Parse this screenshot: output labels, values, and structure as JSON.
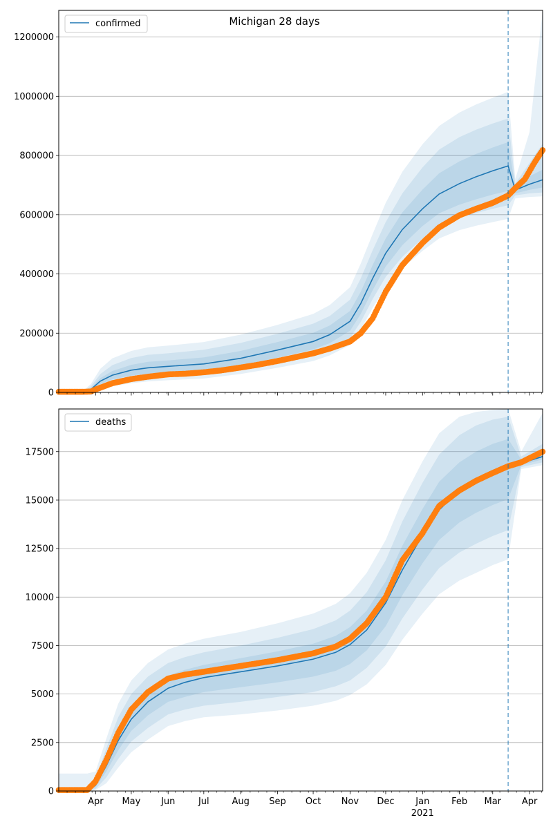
{
  "title": "Michigan 28 days",
  "colors": {
    "model": "#1f77b4",
    "observed": "#ff7f0e",
    "band": "#1f77b4",
    "grid": "#b0b0b0",
    "vline": "#1f77b4"
  },
  "x_axis": {
    "start": "2020-03-01",
    "end": "2021-04-12",
    "forecast_date": "2021-03-14",
    "month_labels": [
      {
        "date": "2020-04-01",
        "label": "Apr"
      },
      {
        "date": "2020-05-01",
        "label": "May"
      },
      {
        "date": "2020-06-01",
        "label": "Jun"
      },
      {
        "date": "2020-07-01",
        "label": "Jul"
      },
      {
        "date": "2020-08-01",
        "label": "Aug"
      },
      {
        "date": "2020-09-01",
        "label": "Sep"
      },
      {
        "date": "2020-10-01",
        "label": "Oct"
      },
      {
        "date": "2020-11-01",
        "label": "Nov"
      },
      {
        "date": "2020-12-01",
        "label": "Dec"
      },
      {
        "date": "2021-01-01",
        "label": "Jan"
      },
      {
        "date": "2021-02-01",
        "label": "Feb"
      },
      {
        "date": "2021-03-01",
        "label": "Mar"
      },
      {
        "date": "2021-04-01",
        "label": "Apr"
      }
    ],
    "year_label": {
      "date": "2021-01-01",
      "label": "2021"
    }
  },
  "chart_data": [
    {
      "type": "line",
      "legend": "confirmed",
      "legend_position": "top-left",
      "grid": "horizontal",
      "ylim": [
        0,
        1290000
      ],
      "yticks": [
        0,
        200000,
        400000,
        600000,
        800000,
        1000000,
        1200000
      ],
      "ytick_labels": [
        "0",
        "200000",
        "400000",
        "600000",
        "800000",
        "1000000",
        "1200000"
      ],
      "model": {
        "x": [
          "2020-03-01",
          "2020-03-20",
          "2020-03-28",
          "2020-04-05",
          "2020-04-15",
          "2020-05-01",
          "2020-05-15",
          "2020-06-01",
          "2020-07-01",
          "2020-08-01",
          "2020-09-01",
          "2020-10-01",
          "2020-10-15",
          "2020-11-01",
          "2020-11-10",
          "2020-11-20",
          "2020-12-01",
          "2020-12-15",
          "2021-01-01",
          "2021-01-15",
          "2021-02-01",
          "2021-02-15",
          "2021-03-01",
          "2021-03-14",
          "2021-03-20",
          "2021-04-01",
          "2021-04-12"
        ],
        "y": [
          0,
          0,
          10000,
          38000,
          58000,
          75000,
          83000,
          88000,
          96000,
          115000,
          143000,
          172000,
          195000,
          240000,
          300000,
          385000,
          470000,
          550000,
          620000,
          670000,
          705000,
          728000,
          748000,
          765000,
          683000,
          703000,
          718000
        ],
        "bands": {
          "lower_1": [
            0,
            0,
            6000,
            28000,
            44000,
            57000,
            63000,
            68000,
            75000,
            92000,
            117000,
            145000,
            166000,
            208000,
            265000,
            345000,
            425000,
            497000,
            562000,
            605000,
            634000,
            652000,
            668000,
            680000,
            672000,
            684000,
            692000
          ],
          "upper_1": [
            0,
            0,
            14000,
            48000,
            72000,
            93000,
            103000,
            108000,
            118000,
            140000,
            170000,
            201000,
            226000,
            275000,
            340000,
            430000,
            520000,
            608000,
            685000,
            740000,
            780000,
            805000,
            827000,
            845000,
            692000,
            730000,
            752000
          ],
          "lower_2": [
            0,
            0,
            3000,
            20000,
            32000,
            43000,
            49000,
            54000,
            60000,
            76000,
            99000,
            125000,
            145000,
            184000,
            238000,
            315000,
            390000,
            458000,
            520000,
            562000,
            590000,
            606000,
            620000,
            632000,
            665000,
            672000,
            675000
          ],
          "upper_2": [
            0,
            0,
            20000,
            62000,
            92000,
            116000,
            127000,
            132000,
            144000,
            167000,
            198000,
            232000,
            258000,
            313000,
            385000,
            480000,
            575000,
            672000,
            760000,
            820000,
            862000,
            887000,
            908000,
            925000,
            705000,
            775000,
            840000
          ],
          "lower_3": [
            0,
            0,
            1000,
            12000,
            21000,
            31000,
            37000,
            41000,
            47000,
            62000,
            83000,
            106000,
            125000,
            160000,
            212000,
            285000,
            355000,
            420000,
            478000,
            520000,
            548000,
            563000,
            575000,
            586000,
            655000,
            660000,
            662000
          ],
          "upper_3": [
            0,
            0,
            28000,
            80000,
            115000,
            140000,
            152000,
            158000,
            170000,
            195000,
            228000,
            265000,
            295000,
            355000,
            435000,
            535000,
            640000,
            745000,
            838000,
            900000,
            945000,
            972000,
            995000,
            1015000,
            720000,
            880000,
            1290000
          ]
        }
      },
      "observed": {
        "x": [
          "2020-03-01",
          "2020-03-20",
          "2020-03-28",
          "2020-04-01",
          "2020-04-15",
          "2020-05-01",
          "2020-05-15",
          "2020-06-01",
          "2020-06-15",
          "2020-07-01",
          "2020-07-15",
          "2020-08-01",
          "2020-08-15",
          "2020-09-01",
          "2020-09-15",
          "2020-10-01",
          "2020-10-15",
          "2020-11-01",
          "2020-11-10",
          "2020-11-20",
          "2020-12-01",
          "2020-12-15",
          "2021-01-01",
          "2021-01-15",
          "2021-02-01",
          "2021-02-15",
          "2021-03-01",
          "2021-03-14",
          "2021-03-20",
          "2021-03-28",
          "2021-04-05",
          "2021-04-12"
        ],
        "y": [
          2000,
          2000,
          3000,
          10000,
          31000,
          45000,
          53000,
          61000,
          63000,
          68000,
          74000,
          84000,
          93000,
          106000,
          118000,
          132000,
          148000,
          172000,
          200000,
          250000,
          340000,
          430000,
          505000,
          557000,
          598000,
          620000,
          640000,
          665000,
          690000,
          720000,
          775000,
          818000
        ]
      }
    },
    {
      "type": "line",
      "legend": "deaths",
      "legend_position": "top-left",
      "grid": "horizontal",
      "ylim": [
        0,
        19700
      ],
      "yticks": [
        0,
        2500,
        5000,
        7500,
        10000,
        12500,
        15000,
        17500
      ],
      "ytick_labels": [
        "0",
        "2500",
        "5000",
        "7500",
        "10000",
        "12500",
        "15000",
        "17500"
      ],
      "model": {
        "x": [
          "2020-03-01",
          "2020-03-25",
          "2020-04-01",
          "2020-04-10",
          "2020-04-20",
          "2020-05-01",
          "2020-05-15",
          "2020-06-01",
          "2020-06-15",
          "2020-07-01",
          "2020-08-01",
          "2020-09-01",
          "2020-10-01",
          "2020-10-20",
          "2020-11-01",
          "2020-11-15",
          "2020-12-01",
          "2020-12-15",
          "2021-01-01",
          "2021-01-15",
          "2021-02-01",
          "2021-02-15",
          "2021-03-01",
          "2021-03-14",
          "2021-03-25",
          "2021-04-12"
        ],
        "y": [
          0,
          0,
          300,
          1300,
          2600,
          3700,
          4600,
          5300,
          5600,
          5850,
          6150,
          6450,
          6800,
          7150,
          7550,
          8300,
          9700,
          11400,
          13200,
          14500,
          15500,
          16000,
          16400,
          16700,
          16900,
          17250
        ],
        "bands": {
          "lower_1": [
            0,
            0,
            200,
            1000,
            2100,
            3100,
            3900,
            4600,
            4850,
            5100,
            5350,
            5600,
            5900,
            6200,
            6550,
            7250,
            8500,
            10100,
            11750,
            12950,
            13850,
            14350,
            14750,
            15050,
            16800,
            17100
          ],
          "upper_1": [
            0,
            0,
            450,
            1700,
            3150,
            4300,
            5250,
            5950,
            6250,
            6500,
            6850,
            7200,
            7600,
            8000,
            8450,
            9300,
            10800,
            12650,
            14550,
            15950,
            16950,
            17500,
            17900,
            18150,
            17100,
            17500
          ],
          "lower_2": [
            0,
            0,
            100,
            700,
            1650,
            2550,
            3250,
            3950,
            4200,
            4400,
            4600,
            4850,
            5100,
            5400,
            5700,
            6350,
            7450,
            8900,
            10400,
            11500,
            12300,
            12750,
            13150,
            13450,
            16700,
            16950
          ],
          "upper_2": [
            0,
            0,
            650,
            2200,
            3800,
            5000,
            5900,
            6600,
            6900,
            7150,
            7500,
            7900,
            8350,
            8800,
            9300,
            10250,
            11900,
            13900,
            15900,
            17350,
            18350,
            18850,
            19150,
            19300,
            17250,
            17900
          ],
          "lower_3": [
            0,
            0,
            50,
            400,
            1200,
            2000,
            2650,
            3350,
            3600,
            3800,
            3950,
            4150,
            4400,
            4650,
            4950,
            5500,
            6500,
            7800,
            9150,
            10150,
            10850,
            11250,
            11650,
            11950,
            16600,
            16800
          ],
          "upper_3": [
            900,
            900,
            1000,
            2700,
            4500,
            5700,
            6600,
            7300,
            7600,
            7850,
            8200,
            8650,
            9150,
            9650,
            10200,
            11250,
            12950,
            15000,
            17000,
            18450,
            19300,
            19550,
            19650,
            19700,
            17500,
            19500
          ]
        }
      },
      "observed": {
        "x": [
          "2020-03-01",
          "2020-03-25",
          "2020-04-01",
          "2020-04-10",
          "2020-04-20",
          "2020-05-01",
          "2020-05-15",
          "2020-06-01",
          "2020-06-15",
          "2020-07-01",
          "2020-08-01",
          "2020-09-01",
          "2020-10-01",
          "2020-10-20",
          "2020-11-01",
          "2020-11-15",
          "2020-12-01",
          "2020-12-15",
          "2021-01-01",
          "2021-01-15",
          "2021-02-01",
          "2021-02-15",
          "2021-03-01",
          "2021-03-14",
          "2021-03-25",
          "2021-04-12"
        ],
        "y": [
          50,
          50,
          500,
          1600,
          3000,
          4200,
          5100,
          5800,
          6000,
          6150,
          6450,
          6750,
          7100,
          7450,
          7850,
          8650,
          10000,
          11900,
          13300,
          14700,
          15500,
          16000,
          16400,
          16750,
          16950,
          17500
        ]
      }
    }
  ]
}
